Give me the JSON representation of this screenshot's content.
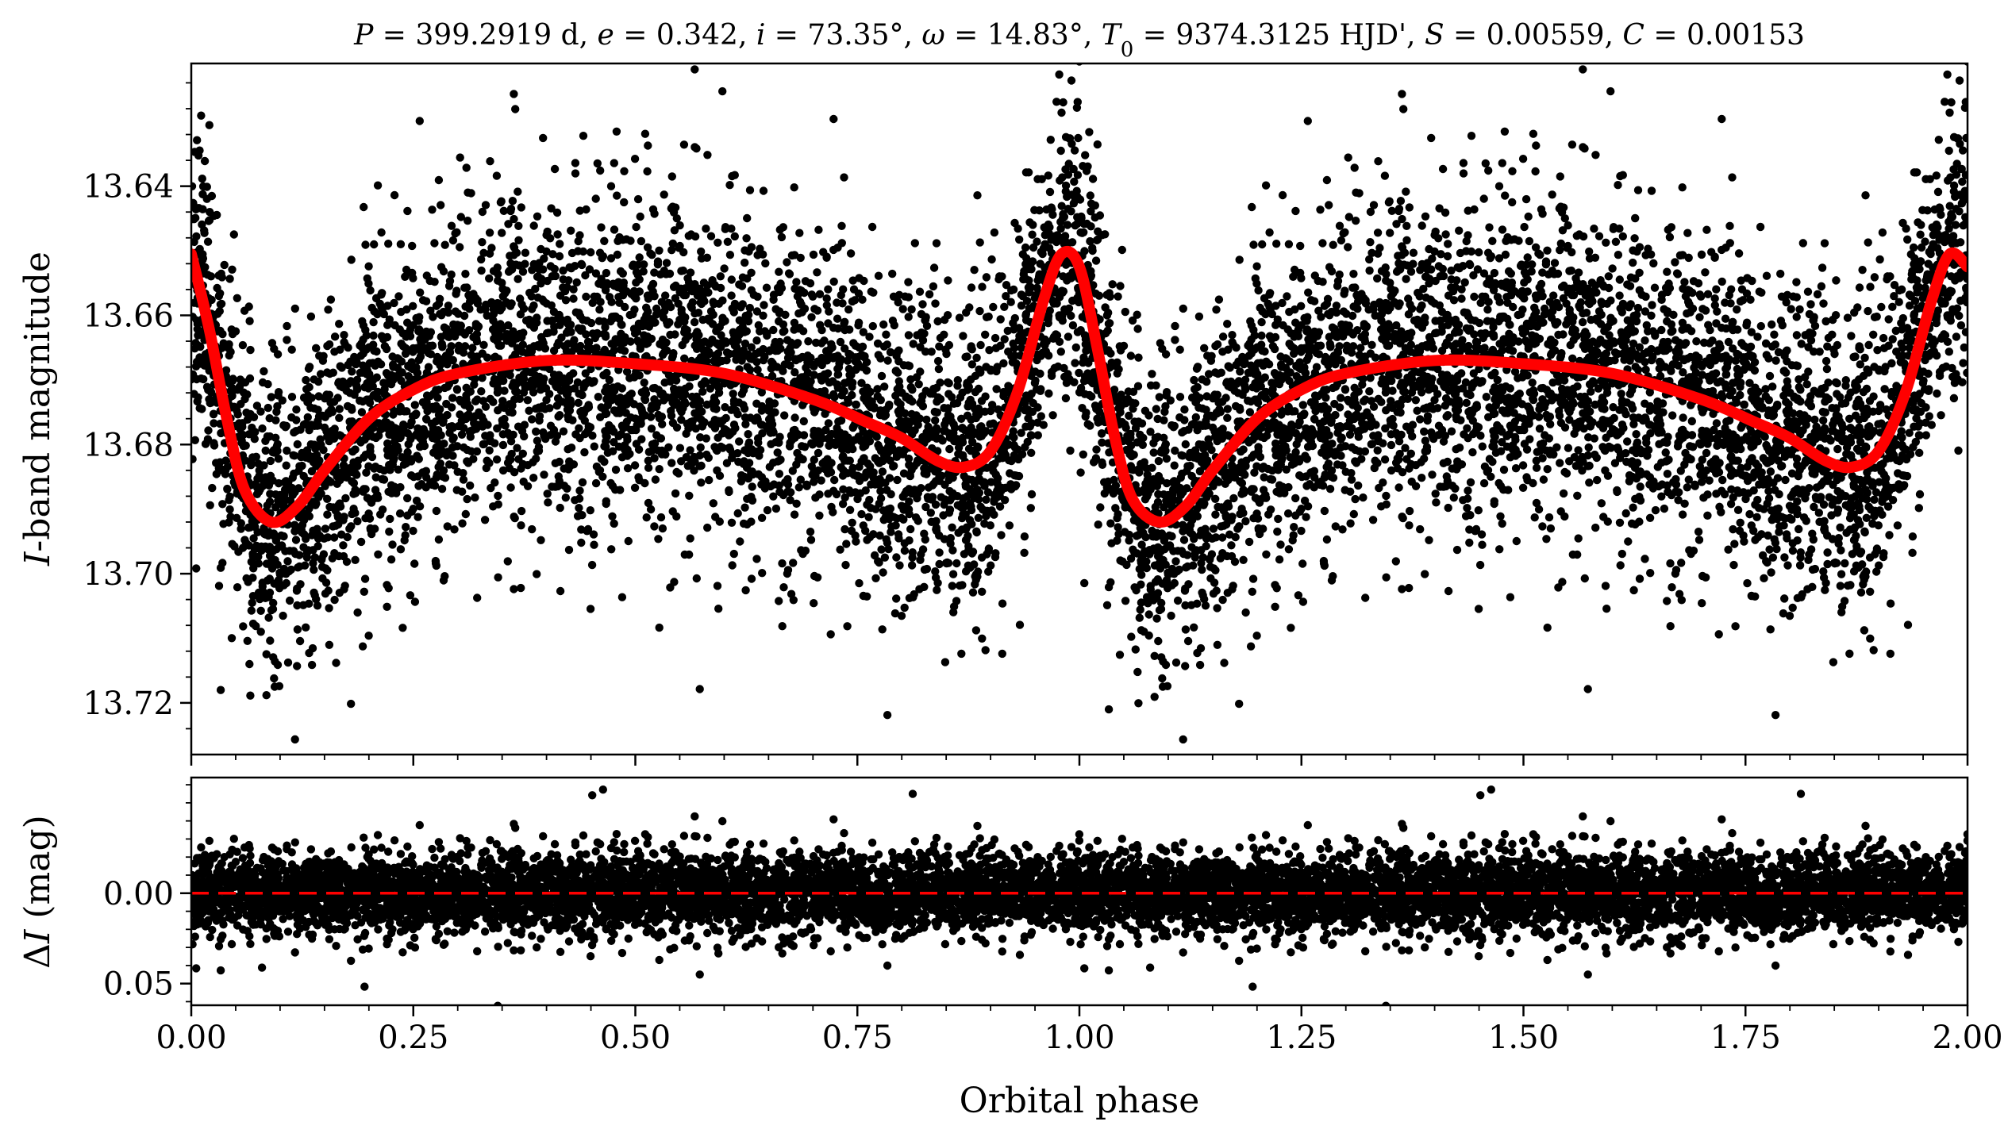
{
  "chart_data": [
    {
      "panel": "top",
      "type": "scatter",
      "title_parts": [
        {
          "t": "P",
          "i": true
        },
        {
          "t": " = 399.2919 d, "
        },
        {
          "t": "e",
          "i": true
        },
        {
          "t": " = 0.342, "
        },
        {
          "t": "i",
          "i": true
        },
        {
          "t": " = 73.35°, "
        },
        {
          "t": "ω",
          "i": true
        },
        {
          "t": " = 14.83°, "
        },
        {
          "t": "T",
          "i": true
        },
        {
          "t": "0",
          "sub": true
        },
        {
          "t": " = 9374.3125 HJD', "
        },
        {
          "t": "S",
          "i": true
        },
        {
          "t": " = 0.00559, "
        },
        {
          "t": "C",
          "i": true
        },
        {
          "t": " = 0.00153"
        }
      ],
      "xlabel": "Orbital phase",
      "ylabel_parts": [
        {
          "t": "I",
          "i": true
        },
        {
          "t": "-band magnitude"
        }
      ],
      "xlim": [
        0.0,
        2.0
      ],
      "ylim": [
        13.728,
        13.621
      ],
      "y_inverted": true,
      "yticks": [
        "13.64",
        "13.66",
        "13.68",
        "13.70",
        "13.72"
      ],
      "series": [
        {
          "kind": "observed-points",
          "color": "#000000",
          "n_approx": 9000,
          "scatter_mag": 0.0115
        },
        {
          "kind": "model-curve",
          "color": "#ff0000",
          "x": [
            0.0,
            0.02,
            0.04,
            0.06,
            0.09,
            0.12,
            0.15,
            0.2,
            0.25,
            0.3,
            0.4,
            0.5,
            0.6,
            0.7,
            0.76,
            0.8,
            0.84,
            0.87,
            0.9,
            0.93,
            0.96,
            0.98,
            1.0,
            1.02,
            1.04,
            1.06,
            1.09,
            1.12,
            1.15,
            1.2,
            1.25,
            1.3,
            1.4,
            1.5,
            1.6,
            1.7,
            1.76,
            1.8,
            1.84,
            1.87,
            1.9,
            1.93,
            1.96,
            1.98,
            2.0
          ],
          "y": [
            13.6505,
            13.662,
            13.676,
            13.687,
            13.692,
            13.6895,
            13.684,
            13.676,
            13.6715,
            13.669,
            13.667,
            13.6675,
            13.669,
            13.673,
            13.6765,
            13.679,
            13.6825,
            13.6835,
            13.681,
            13.672,
            13.6575,
            13.6505,
            13.6525,
            13.665,
            13.679,
            13.6885,
            13.692,
            13.6895,
            13.684,
            13.676,
            13.6715,
            13.669,
            13.667,
            13.6675,
            13.669,
            13.673,
            13.6765,
            13.679,
            13.6825,
            13.6835,
            13.681,
            13.672,
            13.6575,
            13.6505,
            13.6525
          ]
        }
      ]
    },
    {
      "panel": "bottom",
      "type": "scatter",
      "xlabel": "Orbital phase",
      "ylabel_parts": [
        {
          "t": "Δ"
        },
        {
          "t": "I",
          "i": true
        },
        {
          "t": " (mag)"
        }
      ],
      "xlim": [
        0.0,
        2.0
      ],
      "ylim": [
        0.062,
        -0.064
      ],
      "y_inverted": true,
      "yticks": [
        "0.00",
        "0.05"
      ],
      "xticks": [
        "0.00",
        "0.25",
        "0.50",
        "0.75",
        "1.00",
        "1.25",
        "1.50",
        "1.75",
        "2.00"
      ],
      "series": [
        {
          "kind": "residual-points",
          "color": "#000000",
          "n_approx": 9000,
          "scatter_mag": 0.0105
        },
        {
          "kind": "zero-line",
          "color": "#ff0000",
          "style": "dashed",
          "y": 0.0
        }
      ]
    }
  ]
}
